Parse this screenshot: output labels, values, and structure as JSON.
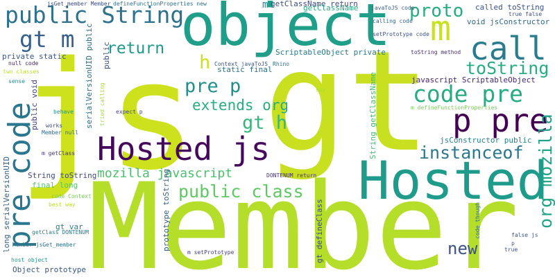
{
  "words": [
    {
      "text": "Member",
      "color": "#b5de2b"
    },
    {
      "text": "gt",
      "color": "#c8e020"
    },
    {
      "text": "js",
      "color": "#cde11d"
    },
    {
      "text": "object",
      "color": "#1f9e89"
    },
    {
      "text": "Hosted",
      "color": "#1e9b8a"
    },
    {
      "text": "Hosted js",
      "color": "#46085c"
    },
    {
      "text": "p pre",
      "color": "#440154"
    },
    {
      "text": "call",
      "color": "#287c8e"
    },
    {
      "text": "public String",
      "color": "#2c728e"
    },
    {
      "text": "m",
      "color": "#cae11f"
    },
    {
      "text": "proto",
      "color": "#26ad81"
    },
    {
      "text": "pre code",
      "color": "#2a768e"
    },
    {
      "text": "gt m",
      "color": "#355f8d"
    },
    {
      "text": "code pre",
      "color": "#25ac82"
    },
    {
      "text": "toString",
      "color": "#27ad81"
    },
    {
      "text": "instanceof",
      "color": "#2a788e"
    },
    {
      "text": "public class",
      "color": "#5ec962"
    },
    {
      "text": "pre p",
      "color": "#21908d"
    },
    {
      "text": "gt h",
      "color": "#35b779"
    },
    {
      "text": "extends org",
      "color": "#27ad81"
    },
    {
      "text": "return",
      "color": "#1f9a8a"
    },
    {
      "text": "h",
      "color": "#d0e11c"
    },
    {
      "text": "org mozilla",
      "color": "#20a486"
    },
    {
      "text": "mozilla javascript",
      "color": "#4ac16d"
    },
    {
      "text": "new",
      "color": "#3b528b"
    },
    {
      "text": "javascript ScriptableObject",
      "color": "#482475"
    },
    {
      "text": "ScriptableObject private",
      "color": "#2a788e"
    },
    {
      "text": "static final",
      "color": "#2c718e"
    },
    {
      "text": "jsConstructor public",
      "color": "#25848e"
    },
    {
      "text": "called toString",
      "color": "#3b528b"
    },
    {
      "text": "void jsConstructor",
      "color": "#31688e"
    },
    {
      "text": "getClassName return",
      "color": "#3e4a89"
    },
    {
      "text": "private static",
      "color": "#3b528b"
    },
    {
      "text": "String toString",
      "color": "#3e4989"
    },
    {
      "text": "final long",
      "color": "#52c569"
    },
    {
      "text": "gt var",
      "color": "#27808e"
    },
    {
      "text": "Object prototype",
      "color": "#38588c"
    },
    {
      "text": "long serialVersionUID",
      "color": "#34608d"
    },
    {
      "text": "public void",
      "color": "#404387"
    },
    {
      "text": "serialVersionUID public",
      "color": "#2d708e"
    },
    {
      "text": "prototype toString",
      "color": "#33638d"
    },
    {
      "text": "gt defineClass",
      "color": "#3f4788"
    },
    {
      "text": "String getClassName",
      "color": "#44bf70"
    },
    {
      "text": "jsGet_member Member",
      "color": "#3d4e8a"
    },
    {
      "text": "defineFunctionProperties new",
      "color": "#2d708e"
    },
    {
      "text": "javaToJS code",
      "color": "#355e8d"
    },
    {
      "text": "calling code",
      "color": "#32658e"
    },
    {
      "text": "setPrototype code",
      "color": "#3b528b"
    },
    {
      "text": "toString method",
      "color": "#472d7b"
    },
    {
      "text": "true false",
      "color": "#3d4e8a"
    },
    {
      "text": "null code",
      "color": "#482173"
    },
    {
      "text": "Context javaToJS",
      "color": "#3b528b"
    },
    {
      "text": "Rhino",
      "color": "#2c738e"
    },
    {
      "text": "say",
      "color": "#a5db36"
    },
    {
      "text": "two classes",
      "color": "#bddf26"
    },
    {
      "text": "sense",
      "color": "#21918c"
    },
    {
      "text": "behave",
      "color": "#1f968b"
    },
    {
      "text": "works",
      "color": "#3e4a89"
    },
    {
      "text": "Member null",
      "color": "#2f6c8e"
    },
    {
      "text": "m getClass",
      "color": "#46307e"
    },
    {
      "text": "tried calling",
      "color": "#a8db34"
    },
    {
      "text": "expect p",
      "color": "#3f4788"
    },
    {
      "text": "m defineFunctionProperties",
      "color": "#75d054"
    },
    {
      "text": "DONTENUM return",
      "color": "#472f7d"
    },
    {
      "text": "code Context",
      "color": "#7ad151"
    },
    {
      "text": "best way",
      "color": "#bddf26"
    },
    {
      "text": "getClass DONTENUM",
      "color": "#287c8e"
    },
    {
      "text": "Member jsGet_member",
      "color": "#2c728e"
    },
    {
      "text": "host object",
      "color": "#1f958b"
    },
    {
      "text": "m setPrototype",
      "color": "#443a83"
    },
    {
      "text": "code though",
      "color": "#2e6f8e"
    },
    {
      "text": "false js",
      "color": "#3a548c"
    },
    {
      "text": "p",
      "color": "#3b528b"
    },
    {
      "text": "true",
      "color": "#3b528b"
    },
    {
      "text": "getClassName",
      "color": "#25ab82"
    },
    {
      "text": "m",
      "color": "#238a8d"
    },
    {
      "text": "public",
      "color": "#3b528b"
    }
  ]
}
